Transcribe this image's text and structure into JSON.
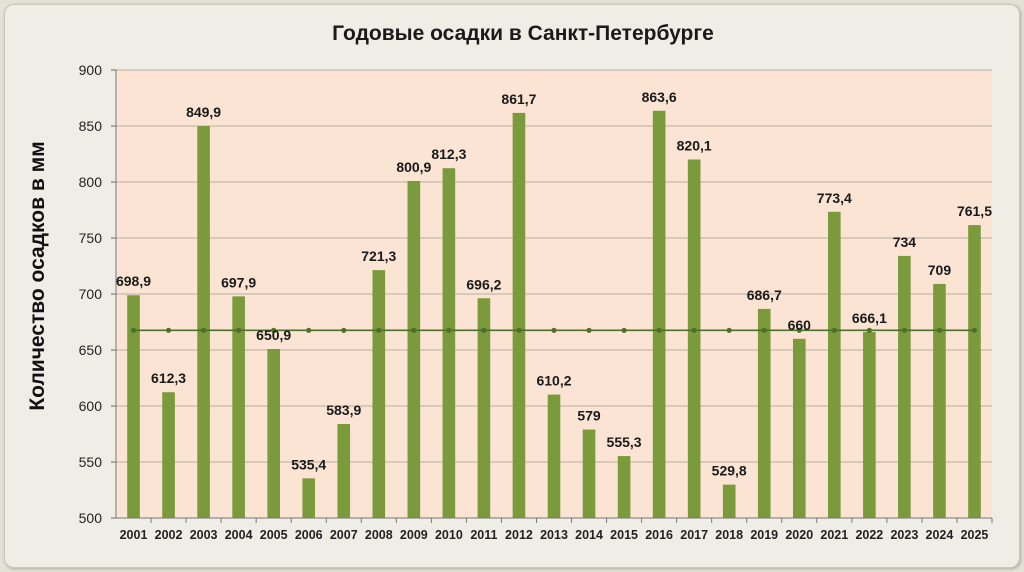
{
  "chart_data": {
    "type": "bar",
    "title": "Годовые осадки в Санкт-Петербурге",
    "xlabel": "",
    "ylabel": "Количество осадков в мм",
    "categories": [
      "2001",
      "2002",
      "2003",
      "2004",
      "2005",
      "2006",
      "2007",
      "2008",
      "2009",
      "2010",
      "2011",
      "2012",
      "2013",
      "2014",
      "2015",
      "2016",
      "2017",
      "2018",
      "2019",
      "2020",
      "2021",
      "2022",
      "2023",
      "2024",
      "2025"
    ],
    "values": [
      698.9,
      612.3,
      849.9,
      697.9,
      650.9,
      535.4,
      583.9,
      721.3,
      800.9,
      812.3,
      696.2,
      861.7,
      610.2,
      579,
      555.3,
      863.6,
      820.1,
      529.8,
      686.7,
      660,
      773.4,
      666.1,
      734,
      709,
      761.5
    ],
    "value_labels": [
      "698,9",
      "612,3",
      "849,9",
      "697,9",
      "650,9",
      "535,4",
      "583,9",
      "721,3",
      "800,9",
      "812,3",
      "696,2",
      "861,7",
      "610,2",
      "579",
      "555,3",
      "863,6",
      "820,1",
      "529,8",
      "686,7",
      "660",
      "773,4",
      "666,1",
      "734",
      "709",
      "761,5"
    ],
    "ylim": [
      500,
      900
    ],
    "yticks": [
      500,
      550,
      600,
      650,
      700,
      750,
      800,
      850,
      900
    ],
    "average_line": 667.6,
    "grid": true,
    "legend": "none",
    "colors": {
      "bar": "#7a9a3c",
      "plot_background": "#fbe4d3",
      "average_line": "#4f6f2a",
      "grid": "#b9ad9f"
    }
  }
}
